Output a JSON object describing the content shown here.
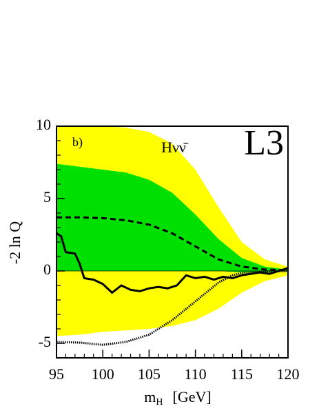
{
  "chart_data": {
    "type": "line",
    "annotations": [
      "b)",
      "Hνν̄",
      "L3"
    ],
    "y_label": "-2 ln Q",
    "x_label": "m",
    "x_label_sub": "H",
    "x_label_unit": "[GeV]",
    "xlim": [
      95,
      120
    ],
    "ylim": [
      -6,
      10
    ],
    "xticks": [
      95,
      100,
      105,
      110,
      115,
      120
    ],
    "yticks": [
      -5,
      0,
      5,
      10
    ],
    "xminorticks": [
      96,
      97,
      98,
      99,
      101,
      102,
      103,
      104,
      106,
      107,
      108,
      109,
      111,
      112,
      113,
      114,
      116,
      117,
      118,
      119
    ],
    "yminorticks": [
      -6,
      -4,
      -3,
      -2,
      -1,
      1,
      2,
      3,
      4,
      6,
      7,
      8,
      9
    ],
    "hline": 0,
    "x": [
      95,
      97.5,
      100,
      102.5,
      105,
      107.5,
      110,
      112.5,
      115,
      117.5,
      120
    ],
    "bands": [
      {
        "color": "#ffff00",
        "upper": [
          10,
          10,
          10,
          9.9,
          9.6,
          8.8,
          7.0,
          4.4,
          2.0,
          0.8,
          0.3
        ],
        "lower": [
          -4.5,
          -4.4,
          -4.2,
          -4.1,
          -4.0,
          -3.8,
          -3.4,
          -2.6,
          -1.5,
          -0.7,
          -0.3
        ]
      },
      {
        "color": "#00e000",
        "upper": [
          7.4,
          7.2,
          7.0,
          6.8,
          6.3,
          5.4,
          3.9,
          2.2,
          0.9,
          0.3,
          0.1
        ],
        "lower": [
          0,
          0,
          0,
          0,
          0,
          0,
          0,
          0,
          -0.1,
          -0.1,
          0
        ]
      }
    ],
    "series": [
      {
        "style": "dashed",
        "color": "#000000",
        "x": [
          95,
          97.5,
          100,
          102.5,
          105,
          107.5,
          110,
          112.5,
          115,
          117.5,
          120
        ],
        "values": [
          3.7,
          3.7,
          3.65,
          3.5,
          3.2,
          2.6,
          1.7,
          0.8,
          0.3,
          0.1,
          0.05
        ]
      },
      {
        "style": "solid",
        "color": "#000000",
        "x": [
          95,
          95.5,
          96,
          97,
          97.5,
          98,
          99,
          100,
          101,
          102,
          103,
          104,
          105,
          106,
          107,
          108,
          109,
          110,
          111,
          112,
          113,
          114,
          115,
          116,
          117,
          118,
          119,
          120
        ],
        "values": [
          2.6,
          2.4,
          1.3,
          1.2,
          0.5,
          -0.5,
          -0.6,
          -0.9,
          -1.5,
          -1.0,
          -1.3,
          -1.4,
          -1.2,
          -1.1,
          -1.2,
          -1.0,
          -0.3,
          -0.5,
          -0.4,
          -0.6,
          -0.4,
          -0.5,
          -0.3,
          -0.2,
          -0.1,
          -0.2,
          0.0,
          0.2
        ]
      },
      {
        "style": "dotted",
        "color": "#000000",
        "x": [
          95,
          97.5,
          100,
          102.5,
          105,
          107.5,
          110,
          112.5,
          114,
          115,
          117.5,
          120
        ],
        "values": [
          -4.9,
          -4.95,
          -5.1,
          -4.9,
          -4.4,
          -3.4,
          -2.1,
          -0.8,
          -0.3,
          -0.15,
          -0.05,
          0
        ]
      }
    ]
  }
}
